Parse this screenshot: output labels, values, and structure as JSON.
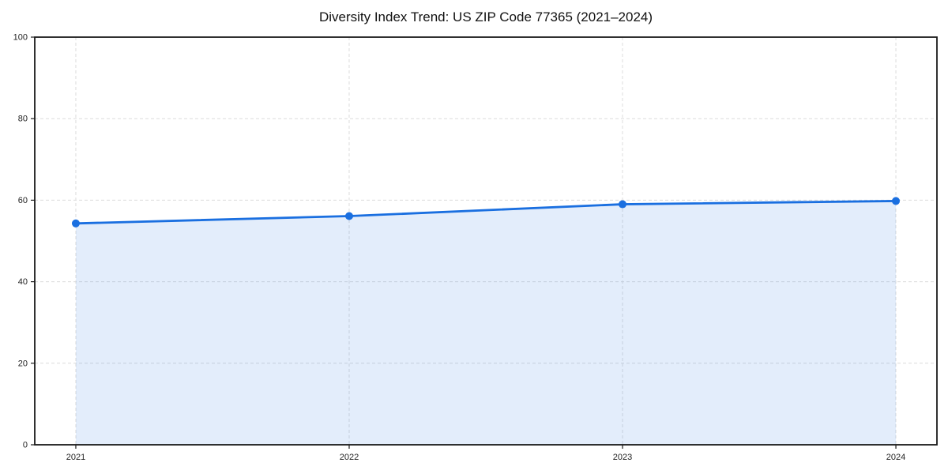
{
  "chart_data": {
    "type": "area",
    "title": "Diversity Index Trend: US ZIP Code 77365 (2021–2024)",
    "categories": [
      "2021",
      "2022",
      "2023",
      "2024"
    ],
    "x": [
      2021,
      2022,
      2023,
      2024
    ],
    "series": [
      {
        "name": "Diversity Index",
        "values": [
          54.3,
          56.1,
          59.0,
          59.8
        ]
      }
    ],
    "xlabel": "",
    "ylabel": "",
    "ylim": [
      0,
      100
    ],
    "yticks": [
      0,
      20,
      40,
      60,
      80,
      100
    ],
    "grid": true,
    "grid_style": "dashed",
    "legend_position": "none",
    "colors": {
      "line": "#1a6fe0",
      "marker": "#1a6fe0",
      "area": "#1a6fe0",
      "grid": "#dcdcdc",
      "spine": "#1a1a1a",
      "tick_text": "#222222",
      "title_text": "#111111",
      "background": "#ffffff"
    }
  }
}
